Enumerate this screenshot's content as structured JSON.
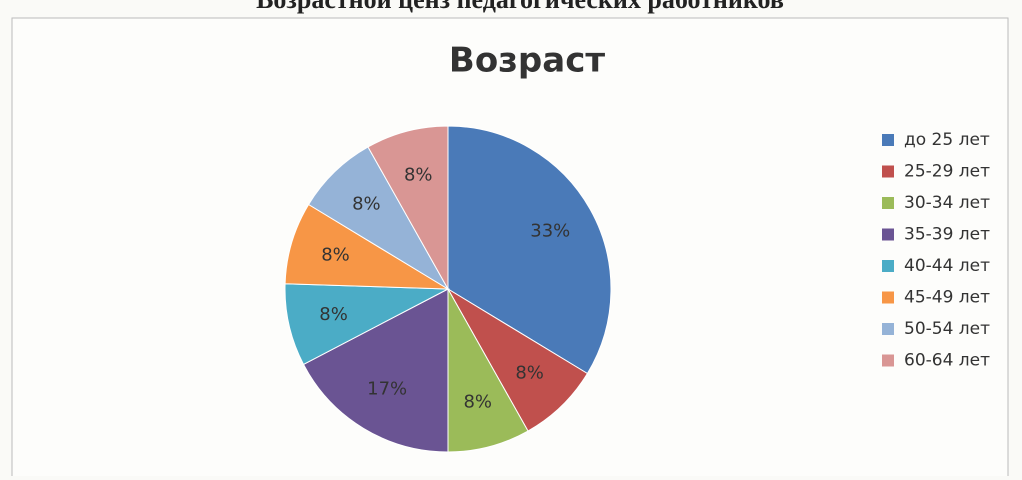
{
  "header": {
    "title": "Возрастной ценз педагогических работников"
  },
  "chart_data": {
    "type": "pie",
    "title": "Возраст",
    "categories": [
      "до 25 лет",
      "25-29 лет",
      "30-34 лет",
      "35-39 лет",
      "40-44 лет",
      "45-49 лет",
      "50-54 лет",
      "60-64 лет"
    ],
    "values": [
      33,
      8,
      8,
      17,
      8,
      8,
      8,
      8
    ],
    "value_labels": [
      "33%",
      "8%",
      "8%",
      "17%",
      "8%",
      "8%",
      "8%",
      "8%"
    ],
    "colors": [
      "#4a7ab8",
      "#c0504d",
      "#9bbb59",
      "#6a5493",
      "#4bacc6",
      "#f79646",
      "#95b3d7",
      "#d99694"
    ],
    "legend": "right"
  }
}
